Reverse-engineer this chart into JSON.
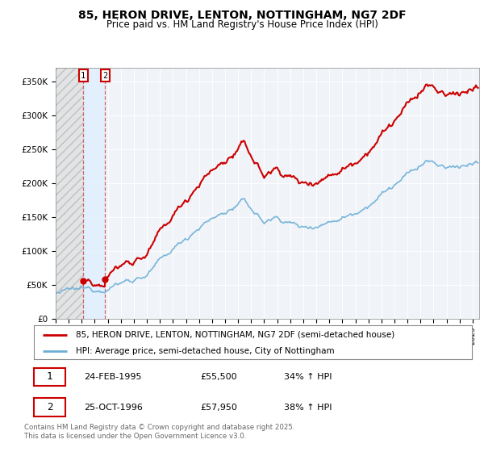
{
  "title": "85, HERON DRIVE, LENTON, NOTTINGHAM, NG7 2DF",
  "subtitle": "Price paid vs. HM Land Registry's House Price Index (HPI)",
  "legend_line1": "85, HERON DRIVE, LENTON, NOTTINGHAM, NG7 2DF (semi-detached house)",
  "legend_line2": "HPI: Average price, semi-detached house, City of Nottingham",
  "note1_date": "24-FEB-1995",
  "note1_price": "£55,500",
  "note1_hpi": "34% ↑ HPI",
  "note2_date": "25-OCT-1996",
  "note2_price": "£57,950",
  "note2_hpi": "38% ↑ HPI",
  "footer": "Contains HM Land Registry data © Crown copyright and database right 2025.\nThis data is licensed under the Open Government Licence v3.0.",
  "purchase1_date": 1995.12,
  "purchase1_price": 55500,
  "purchase2_date": 1996.8,
  "purchase2_price": 57950,
  "hpi_line_color": "#6baed6",
  "price_line_color": "#cc0000",
  "ylim": [
    0,
    370000
  ],
  "xlim_start": 1993.0,
  "xlim_end": 2025.5,
  "yticks": [
    0,
    50000,
    100000,
    150000,
    200000,
    250000,
    300000,
    350000
  ],
  "ytick_labels": [
    "£0",
    "£50K",
    "£100K",
    "£150K",
    "£200K",
    "£250K",
    "£300K",
    "£350K"
  ]
}
